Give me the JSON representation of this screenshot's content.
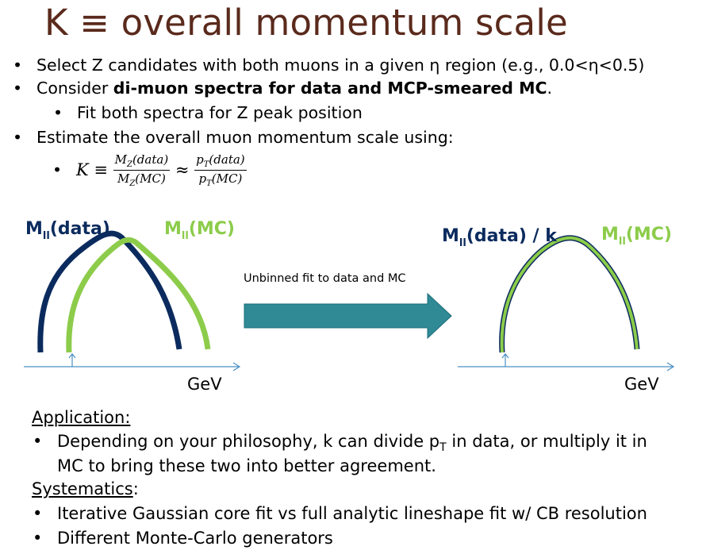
{
  "title": "K ≡ overall momentum scale",
  "bullet_char": "•",
  "bullets": {
    "b1": "Select Z candidates with both muons in a given η region (e.g., 0.0<η<0.5)",
    "b2_pre": "Consider ",
    "b2_bold": "di-muon spectra for data and MCP-smeared MC",
    "b2_post": ".",
    "b2_sub": "Fit both spectra for Z peak position",
    "b3": "Estimate the overall muon momentum scale using:"
  },
  "formula": {
    "lhs": "K ≡ ",
    "f1_num": "M",
    "f1_num_sub": "Z",
    "f1_num_arg": "(data)",
    "f1_den": "M",
    "f1_den_sub": "Z",
    "f1_den_arg": "(MC)",
    "approx": " ≈ ",
    "f2_num": "p",
    "f2_num_sub": "T",
    "f2_num_arg": "(data)",
    "f2_den": "p",
    "f2_den_sub": "T",
    "f2_den_arg": "(MC)"
  },
  "diagram_left": {
    "data_label": "M",
    "data_label_sub": "ll",
    "data_label_rest": "(data)",
    "mc_label": "M",
    "mc_label_sub": "ll",
    "mc_label_rest": "(MC)",
    "axis_unit": "GeV"
  },
  "arrow_label": "Unbinned fit to data and MC",
  "diagram_right": {
    "data_label": "M",
    "data_label_sub": "ll",
    "data_label_rest": "(data) / k",
    "mc_label": "M",
    "mc_label_sub": "ll",
    "mc_label_rest": "(MC)",
    "axis_unit": "GeV"
  },
  "application": {
    "heading": "Application:",
    "line1_a": "Depending on your philosophy,  k can divide p",
    "line1_sub": "T",
    "line1_b": " in data, or multiply it in",
    "line2": "MC to bring these two into better agreement."
  },
  "systematics": {
    "heading": "Systematics",
    "colon": ":",
    "items": [
      "Iterative Gaussian core fit vs full analytic lineshape fit w/ CB resolution",
      "Different Monte-Carlo generators"
    ]
  },
  "colors": {
    "title": "#5a2a1c",
    "data_curve": "#0b2b5e",
    "mc_curve": "#8ccc4a",
    "axis": "#4a8fc4",
    "arrow": "#2f8a96"
  }
}
